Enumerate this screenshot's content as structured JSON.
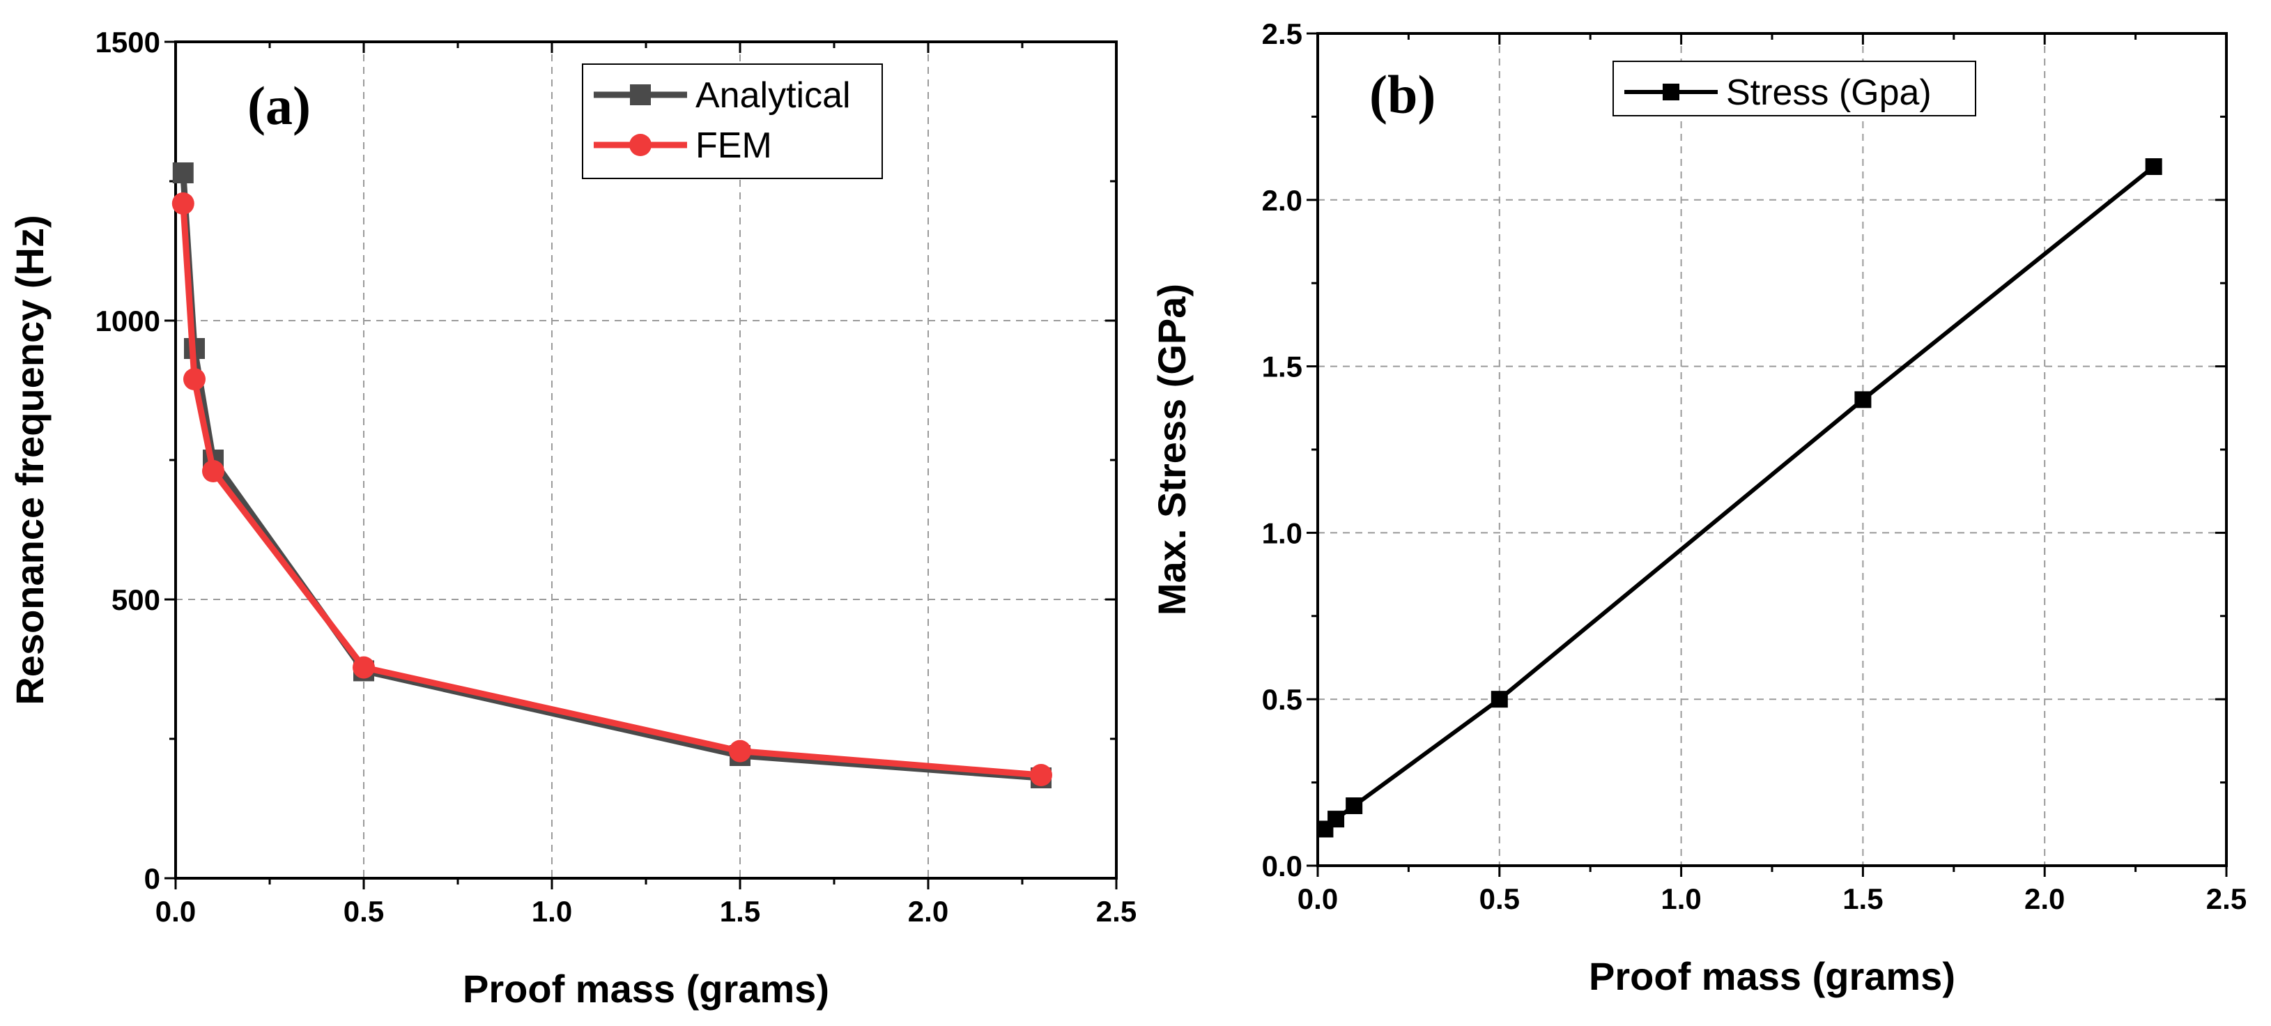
{
  "chart_data": [
    {
      "type": "line",
      "panel_label": "(a)",
      "xlabel": "Proof mass (grams)",
      "ylabel": "Resonance frequency (Hz)",
      "xlim": [
        0,
        2.5
      ],
      "ylim": [
        0,
        1500
      ],
      "xticks": [
        "0.0",
        "0.5",
        "1.0",
        "1.5",
        "2.0",
        "2.5"
      ],
      "yticks": [
        "0",
        "500",
        "1000",
        "1500"
      ],
      "grid": true,
      "legend_position": "top-right",
      "series": [
        {
          "name": "Analytical",
          "color": "#4a4a4a",
          "marker": "square",
          "x": [
            0.02,
            0.05,
            0.1,
            0.5,
            1.5,
            2.3
          ],
          "y": [
            1265,
            950,
            750,
            372,
            220,
            180
          ]
        },
        {
          "name": "FEM",
          "color": "#f03a3a",
          "marker": "circle",
          "x": [
            0.02,
            0.05,
            0.1,
            0.5,
            1.5,
            2.3
          ],
          "y": [
            1210,
            895,
            730,
            378,
            228,
            185
          ]
        }
      ]
    },
    {
      "type": "line",
      "panel_label": "(b)",
      "xlabel": "Proof mass (grams)",
      "ylabel": "Max. Stress (GPa)",
      "xlim": [
        0,
        2.5
      ],
      "ylim": [
        0,
        2.5
      ],
      "xticks": [
        "0.0",
        "0.5",
        "1.0",
        "1.5",
        "2.0",
        "2.5"
      ],
      "yticks": [
        "0.0",
        "0.5",
        "1.0",
        "1.5",
        "2.0",
        "2.5"
      ],
      "grid": true,
      "legend_position": "top-center",
      "series": [
        {
          "name": "Stress (Gpa)",
          "color": "#000000",
          "marker": "square",
          "x": [
            0.02,
            0.05,
            0.1,
            0.5,
            1.5,
            2.3
          ],
          "y": [
            0.11,
            0.14,
            0.18,
            0.5,
            1.4,
            2.1
          ]
        }
      ]
    }
  ]
}
